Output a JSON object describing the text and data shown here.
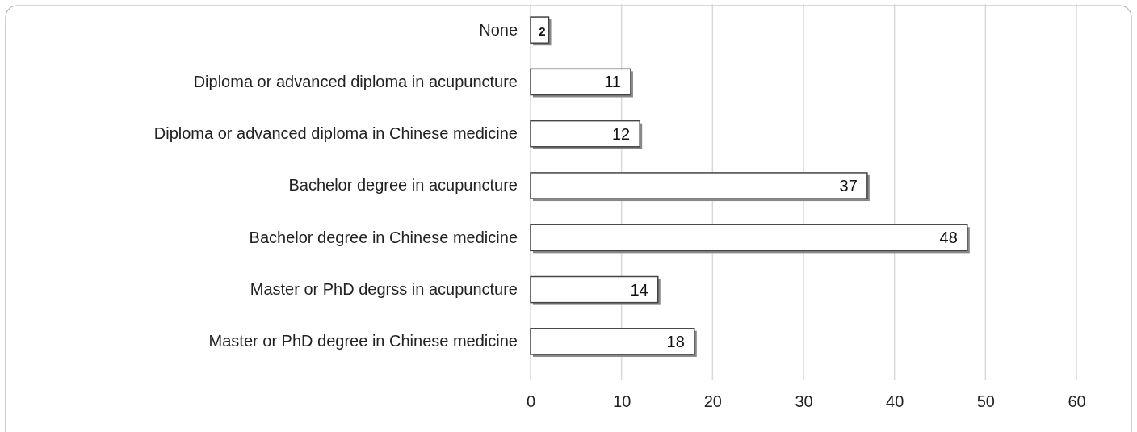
{
  "chart_data": {
    "type": "bar",
    "orientation": "horizontal",
    "categories": [
      "None",
      "Diploma or advanced diploma in acupuncture",
      "Diploma or advanced diploma in Chinese medicine",
      "Bachelor degree in acupuncture",
      "Bachelor degree in Chinese medicine",
      "Master or PhD degrss in acupuncture",
      "Master or PhD degree in Chinese medicine"
    ],
    "values": [
      2,
      11,
      12,
      37,
      48,
      14,
      18
    ],
    "color": "#ffffff",
    "xlim": [
      0,
      60
    ],
    "xticks": [
      0,
      10,
      20,
      30,
      40,
      50,
      60
    ],
    "grid": "x",
    "data_labels": true
  }
}
